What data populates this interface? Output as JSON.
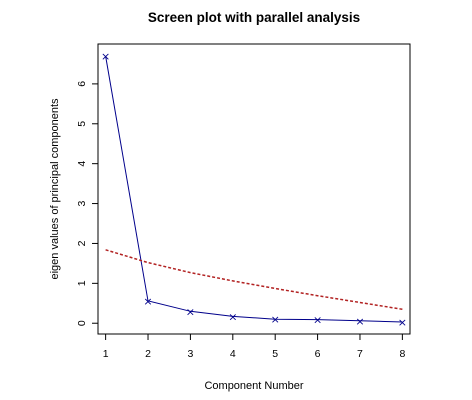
{
  "chart_data": {
    "type": "line",
    "title": "Screen plot with parallel analysis",
    "xlabel": "Component Number",
    "ylabel": "eigen values of principal components",
    "x": [
      1,
      2,
      3,
      4,
      5,
      6,
      7,
      8
    ],
    "xlim": [
      0.82,
      8.18
    ],
    "ylim": [
      -0.27,
      7.0
    ],
    "xticks": [
      1,
      2,
      3,
      4,
      5,
      6,
      7,
      8
    ],
    "yticks": [
      0,
      1,
      2,
      3,
      4,
      5,
      6
    ],
    "series": [
      {
        "values": [
          6.7,
          0.56,
          0.3,
          0.17,
          0.1,
          0.09,
          0.06,
          0.03
        ],
        "color": "#00008b",
        "line": "solid",
        "marker": "x"
      },
      {
        "values": [
          1.84,
          1.52,
          1.27,
          1.06,
          0.87,
          0.69,
          0.52,
          0.35
        ],
        "color": "#b22222",
        "line": "dashed",
        "marker": "none"
      }
    ]
  }
}
